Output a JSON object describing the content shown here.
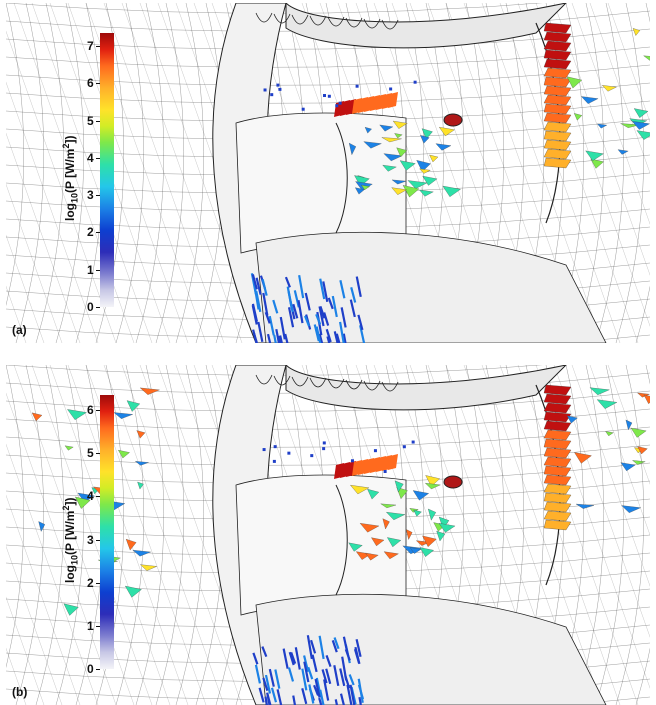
{
  "panels": [
    {
      "label": "(a)",
      "colorbar": {
        "title_main": "log",
        "title_sub": "10",
        "title_rest": "(P [W/m",
        "title_sup": "2",
        "title_end": "])",
        "ticks": [
          "0",
          "1",
          "2",
          "3",
          "4",
          "5",
          "6",
          "7"
        ]
      }
    },
    {
      "label": "(b)",
      "colorbar": {
        "title_main": "log",
        "title_sub": "10",
        "title_rest": "(P [W/m",
        "title_sup": "2",
        "title_end": "])",
        "ticks": [
          "0",
          "1",
          "2",
          "3",
          "4",
          "5",
          "6"
        ]
      }
    }
  ],
  "colors": {
    "mesh": "#3a3a3a",
    "low": "#1f3fc8",
    "mid": "#2ee0a8",
    "high": "#ff6a1e",
    "max": "#c01010"
  }
}
